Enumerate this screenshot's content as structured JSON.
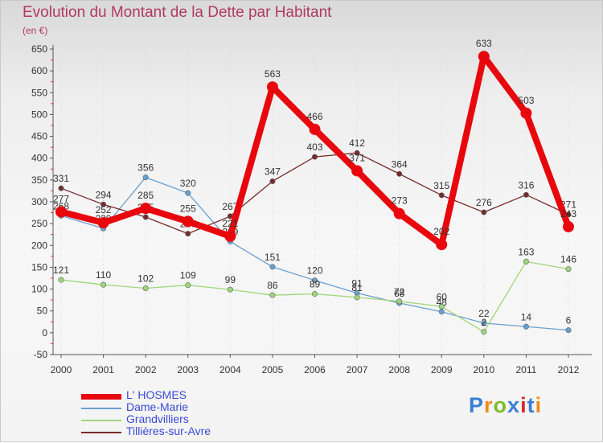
{
  "title": "Evolution du Montant de la Dette par Habitant",
  "subtitle": "(en €)",
  "logo": {
    "text": "Proxiti",
    "colors": [
      "#3a7fd5",
      "#f08a1c",
      "#7cbd2a",
      "#3a7fd5",
      "#e0242b",
      "#3a7fd5",
      "#f08a1c"
    ]
  },
  "chart_data": {
    "type": "line",
    "title": "Evolution du Montant de la Dette par Habitant",
    "ylabel": "(en €)",
    "ylim": [
      -50,
      650
    ],
    "yticks": [
      -50,
      0,
      50,
      100,
      150,
      200,
      250,
      300,
      350,
      400,
      450,
      500,
      550,
      600,
      650
    ],
    "x": [
      "2000",
      "2001",
      "2002",
      "2003",
      "2004",
      "2005",
      "2006",
      "2007",
      "2008",
      "2009",
      "2010",
      "2011",
      "2012"
    ],
    "grid": "vertical dotted",
    "legend_position": "bottom-left",
    "series": [
      {
        "name": "L' HOSMES",
        "color": "#e8070d",
        "values": [
          277,
          252,
          285,
          255,
          221,
          563,
          466,
          371,
          273,
          202,
          633,
          503,
          243
        ],
        "labels": [
          "277",
          "252",
          "285",
          "255",
          "221",
          "563",
          "466",
          "371",
          "273",
          "202",
          "633",
          "503",
          "243"
        ]
      },
      {
        "name": "Dame-Marie",
        "color": "#6aa0d0",
        "values": [
          268,
          239,
          356,
          320,
          209,
          151,
          120,
          91,
          68,
          48,
          22,
          14,
          6
        ],
        "labels": [
          "268",
          "239",
          "356",
          "320",
          "209",
          "151",
          "120",
          "91",
          "68",
          "48",
          "22",
          "14",
          "6"
        ]
      },
      {
        "name": "Grandvilliers",
        "color": "#9fd67a",
        "values": [
          121,
          110,
          102,
          109,
          99,
          86,
          89,
          81,
          72,
          60,
          2,
          163,
          146
        ],
        "labels": [
          "121",
          "110",
          "102",
          "109",
          "99",
          "86",
          "89",
          "81",
          "72",
          "60",
          "2",
          "163",
          "146"
        ]
      },
      {
        "name": "Tillières-sur-Avre",
        "color": "#7a2a2a",
        "values": [
          331,
          294,
          265,
          227,
          267,
          347,
          403,
          412,
          364,
          315,
          276,
          316,
          271
        ],
        "labels": [
          "331",
          "294",
          "265",
          "227",
          "267",
          "347",
          "403",
          "412",
          "364",
          "315",
          "276",
          "316",
          "271"
        ]
      }
    ]
  }
}
